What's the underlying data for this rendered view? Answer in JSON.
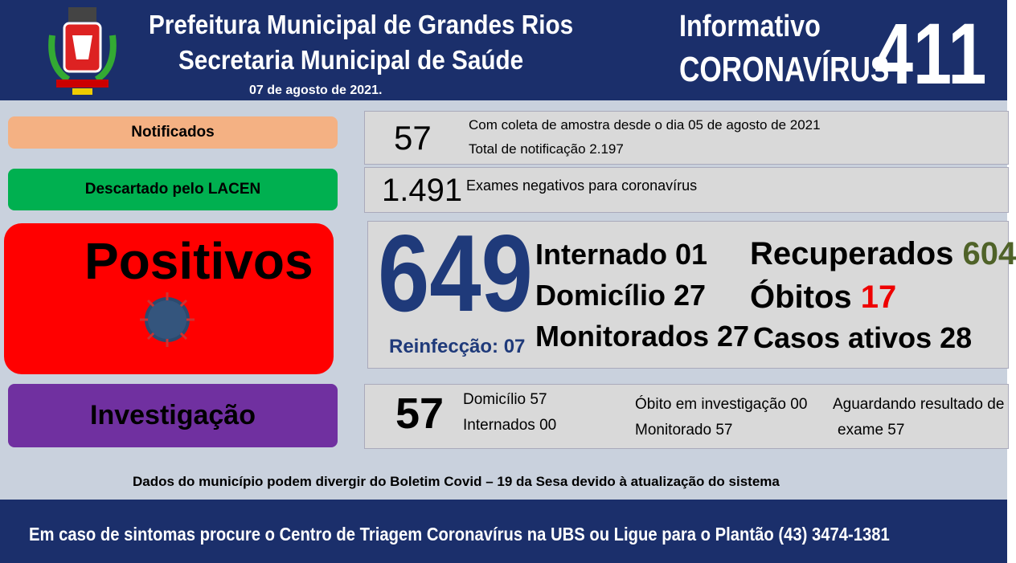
{
  "header": {
    "title_line1": "Prefeitura Municipal de Grandes Rios",
    "title_line2": "Secretaria Municipal de Saúde",
    "date": "07 de agosto  de 2021.",
    "label_line1": "Informativo",
    "label_line2": "CORONAVÍRUS",
    "number": "411"
  },
  "notificados": {
    "label": "Notificados",
    "value": "57",
    "notes": [
      "Com coleta de amostra desde o dia 05 de agosto de 2021",
      "Total de notificação  2.197"
    ]
  },
  "descartado": {
    "label": "Descartado  pelo LACEN",
    "value": "1.491",
    "note": "Exames negativos  para coronavírus"
  },
  "positivos": {
    "label": "Positivos",
    "value": "649",
    "reinfection": "Reinfecção: 07",
    "details": [
      "Internado 01",
      "Domicílio 27",
      "Monitorados 27"
    ],
    "recovered": {
      "label": "Recuperados",
      "value": "604"
    },
    "deaths": {
      "label": "Óbitos",
      "value": "17"
    },
    "active": "Casos ativos 28"
  },
  "investigacao": {
    "label": "Investigação",
    "value": "57",
    "details": [
      "Domicílio 57",
      "Internados 00"
    ],
    "details2": [
      "Óbito  em investigação  00",
      "Monitorado  57"
    ],
    "details3": [
      "Aguardando resultado de",
      "exame 57"
    ]
  },
  "disclaimer": "Dados do município podem  divergir do Boletim  Covid – 19 da Sesa devido à atualização  do sistema",
  "footer": "Em caso de sintomas  procure  o Centro de Triagem  Coronavírus  na UBS ou Ligue  para  o Plantão  (43) 3474-1381"
}
